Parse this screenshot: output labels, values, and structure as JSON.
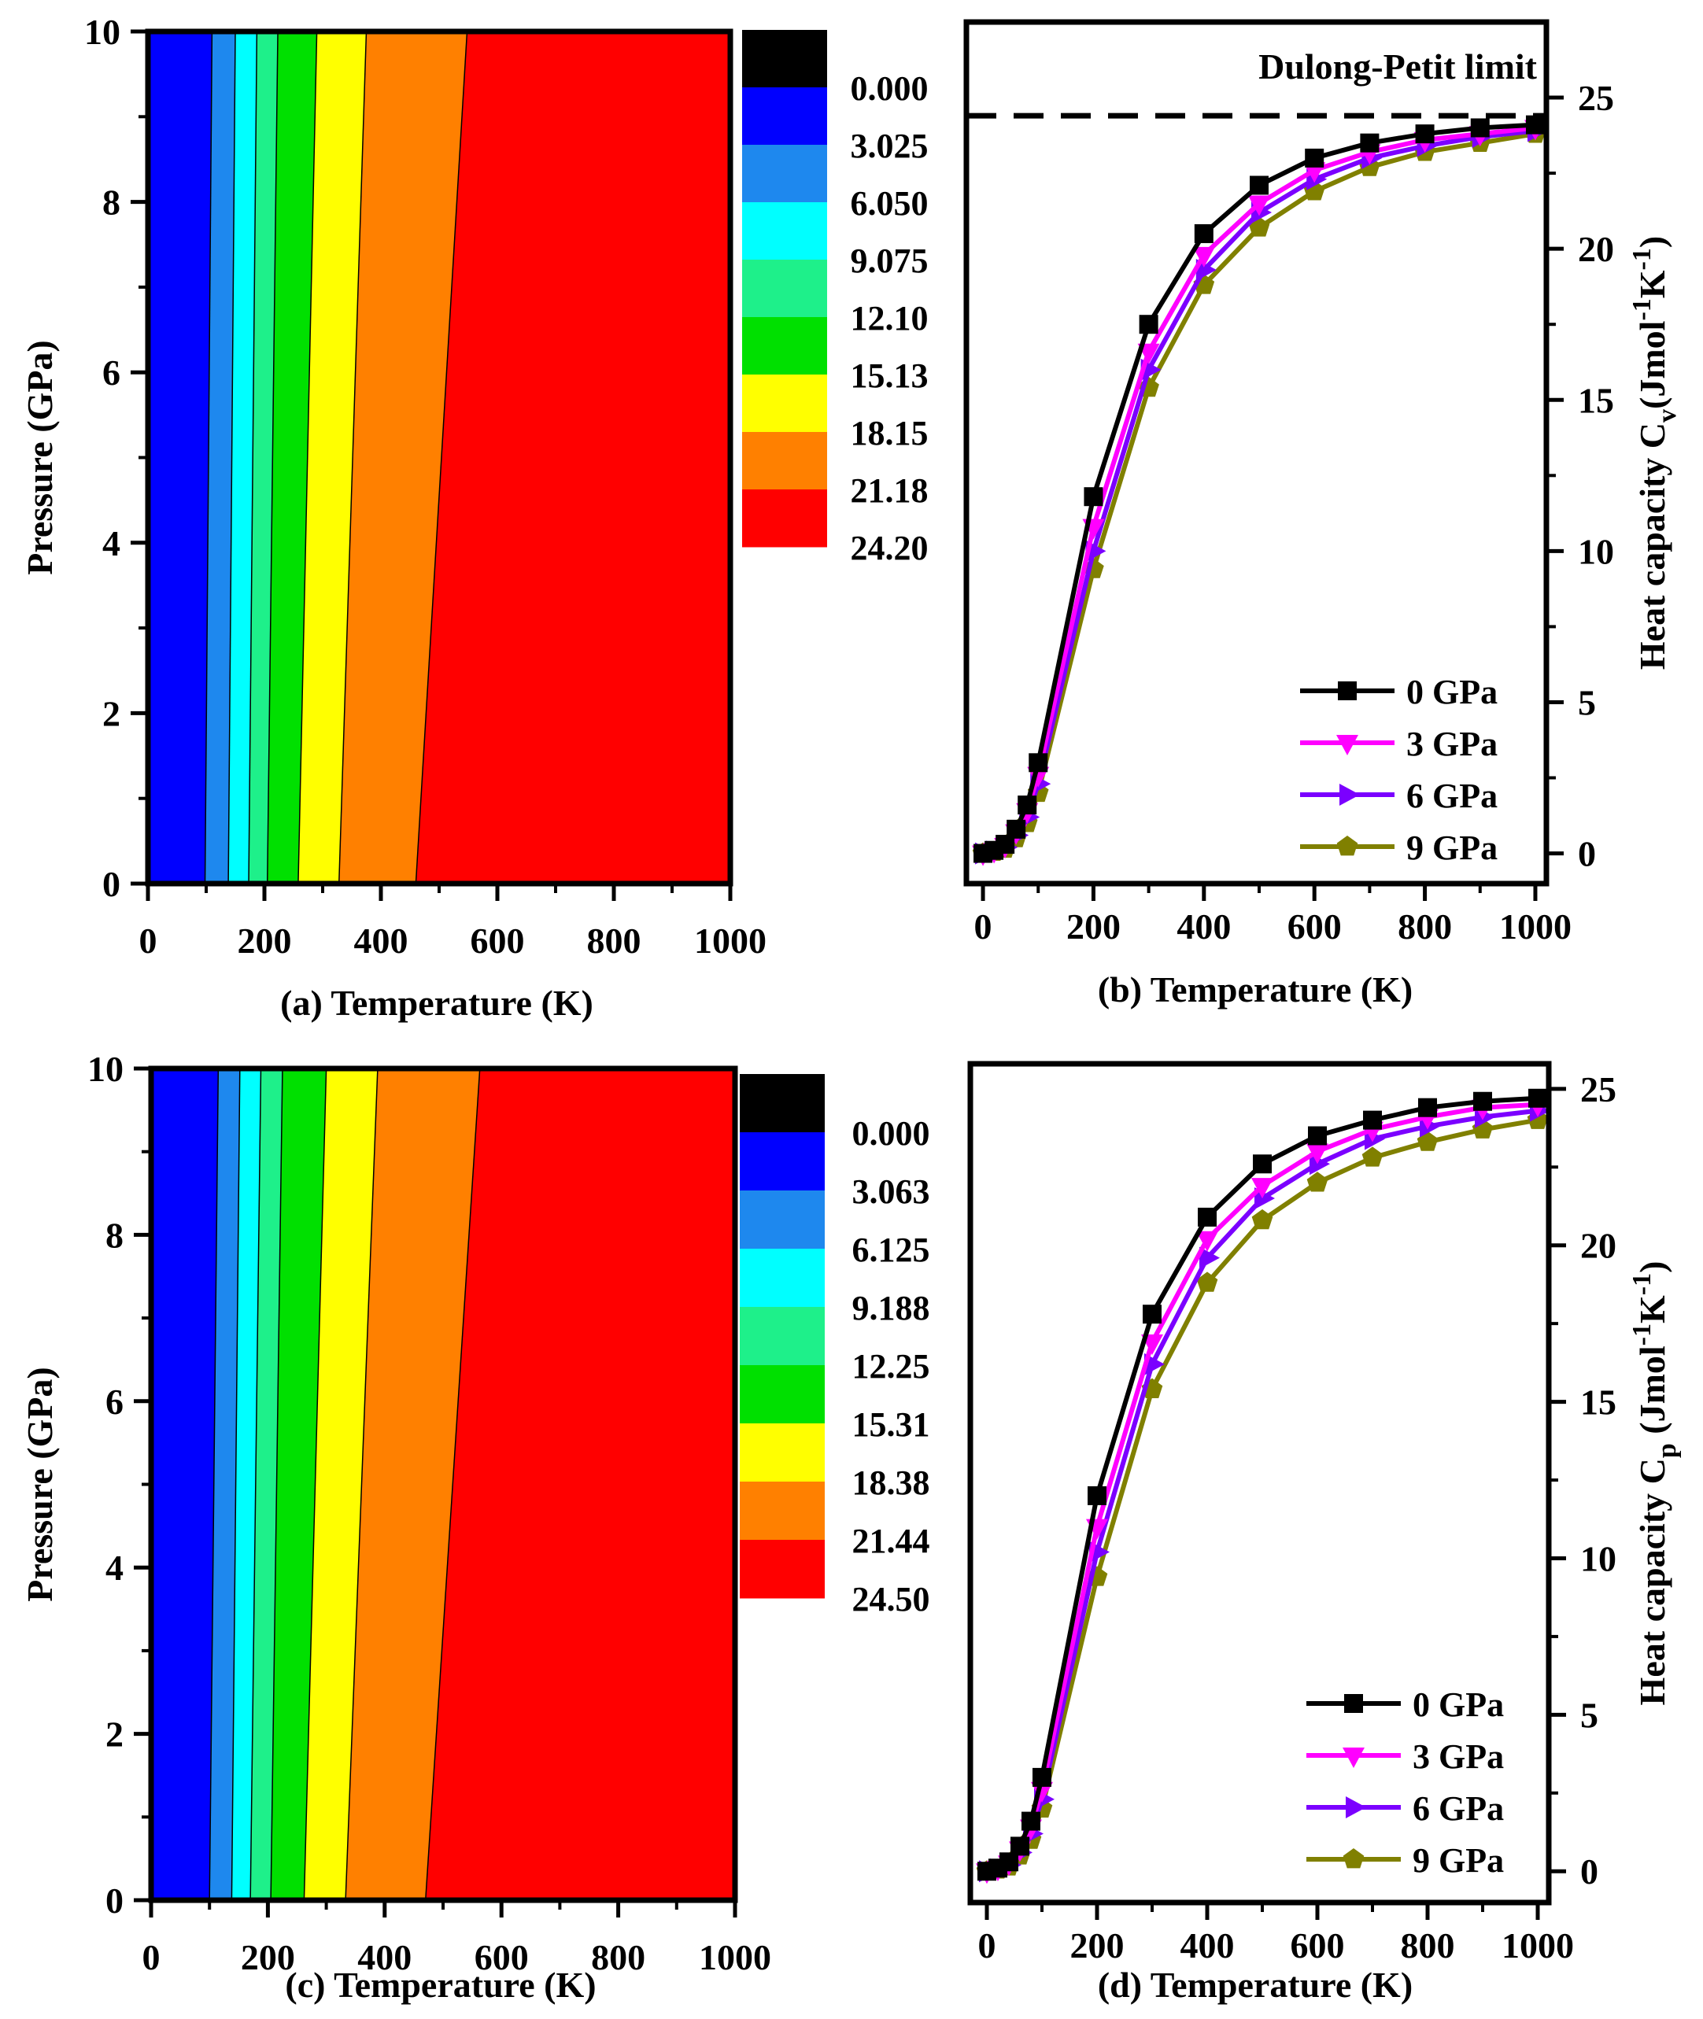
{
  "chart_data": [
    {
      "id": "a",
      "type": "heatmap",
      "caption": "(a) Temperature (K)",
      "ylabel": "Pressure (GPa)",
      "xlim": [
        0,
        1000
      ],
      "ylim": [
        0,
        10
      ],
      "xticks": [
        "0",
        "200",
        "400",
        "600",
        "800",
        "1000"
      ],
      "yticks": [
        "0",
        "2",
        "4",
        "6",
        "8",
        "10"
      ],
      "colorbar": {
        "labels": [
          "0.000",
          "3.025",
          "6.050",
          "9.075",
          "12.10",
          "15.13",
          "18.15",
          "21.18",
          "24.20"
        ],
        "colors": [
          "#000000",
          "#0000ff",
          "#1e88ee",
          "#00ffff",
          "#1ef08a",
          "#00e000",
          "#ffff00",
          "#ff8000",
          "#ff0000"
        ]
      },
      "contour_levels_T_at_P0": [
        98,
        138,
        173,
        205,
        258,
        328,
        460
      ],
      "contour_levels_T_at_P10": [
        110,
        150,
        187,
        223,
        290,
        375,
        548
      ]
    },
    {
      "id": "b",
      "type": "line",
      "caption": "(b) Temperature (K)",
      "ylabel": "Heat capacity Cv (Jmol-1K-1)",
      "ylabel_main": "Heat capacity C",
      "ylabel_sub": "v",
      "ylabel_unit": "(Jmol",
      "ylabel_sup1": "-1",
      "ylabel_k": "K",
      "ylabel_sup2": "-1",
      "ylabel_end": ")",
      "annotation": "Dulong-Petit limit",
      "dulong_petit_value": 24.4,
      "xlim": [
        -30,
        1020
      ],
      "ylim": [
        -1,
        27.5
      ],
      "xticks": [
        "0",
        "200",
        "400",
        "600",
        "800",
        "1000"
      ],
      "yticks": [
        "0",
        "5",
        "10",
        "15",
        "20",
        "25"
      ],
      "x": [
        0,
        20,
        40,
        60,
        80,
        100,
        200,
        300,
        400,
        500,
        600,
        700,
        800,
        900,
        1000
      ],
      "series": [
        {
          "name": "0 GPa",
          "marker": "square",
          "color": "#000000",
          "values": [
            0,
            0.1,
            0.3,
            0.8,
            1.6,
            3.0,
            11.8,
            17.5,
            20.5,
            22.1,
            23.0,
            23.5,
            23.8,
            24.0,
            24.1
          ]
        },
        {
          "name": "3 GPa",
          "marker": "triangle-down",
          "color": "#ff00ff",
          "values": [
            0,
            0.08,
            0.25,
            0.7,
            1.4,
            2.6,
            10.8,
            16.6,
            19.8,
            21.5,
            22.6,
            23.2,
            23.6,
            23.8,
            24.0
          ]
        },
        {
          "name": "6 GPa",
          "marker": "triangle-right",
          "color": "#7b00ff",
          "values": [
            0,
            0.06,
            0.2,
            0.6,
            1.2,
            2.3,
            10.0,
            16.0,
            19.3,
            21.2,
            22.3,
            23.0,
            23.4,
            23.7,
            23.9
          ]
        },
        {
          "name": "9 GPa",
          "marker": "pentagon",
          "color": "#808000",
          "values": [
            0,
            0.05,
            0.15,
            0.5,
            1.0,
            2.0,
            9.4,
            15.4,
            18.8,
            20.7,
            21.9,
            22.7,
            23.2,
            23.5,
            23.8
          ]
        }
      ]
    },
    {
      "id": "c",
      "type": "heatmap",
      "caption": "(c) Temperature (K)",
      "ylabel": "Pressure (GPa)",
      "xlim": [
        0,
        1000
      ],
      "ylim": [
        0,
        10
      ],
      "xticks": [
        "0",
        "200",
        "400",
        "600",
        "800",
        "1000"
      ],
      "yticks": [
        "0",
        "2",
        "4",
        "6",
        "8",
        "10"
      ],
      "colorbar": {
        "labels": [
          "0.000",
          "3.063",
          "6.125",
          "9.188",
          "12.25",
          "15.31",
          "18.38",
          "21.44",
          "24.50"
        ],
        "colors": [
          "#000000",
          "#0000ff",
          "#1e88ee",
          "#00ffff",
          "#1ef08a",
          "#00e000",
          "#ffff00",
          "#ff8000",
          "#ff0000"
        ]
      },
      "contour_levels_T_at_P0": [
        100,
        138,
        170,
        205,
        262,
        333,
        470
      ],
      "contour_levels_T_at_P10": [
        115,
        152,
        188,
        225,
        300,
        388,
        563
      ]
    },
    {
      "id": "d",
      "type": "line",
      "caption": "(d) Temperature (K)",
      "ylabel": "Heat capacity Cp (Jmol-1K-1)",
      "ylabel_main": "Heat capacity C",
      "ylabel_sub": "p",
      "ylabel_unit": " (Jmol",
      "ylabel_sup1": "-1",
      "ylabel_k": "K",
      "ylabel_sup2": "-1",
      "ylabel_end": ")",
      "xlim": [
        -30,
        1020
      ],
      "ylim": [
        -1,
        25.8
      ],
      "xticks": [
        "0",
        "200",
        "400",
        "600",
        "800",
        "1000"
      ],
      "yticks": [
        "0",
        "5",
        "10",
        "15",
        "20",
        "25"
      ],
      "x": [
        0,
        20,
        40,
        60,
        80,
        100,
        200,
        300,
        400,
        500,
        600,
        700,
        800,
        900,
        1000
      ],
      "series": [
        {
          "name": "0 GPa",
          "marker": "square",
          "color": "#000000",
          "values": [
            0,
            0.1,
            0.3,
            0.8,
            1.6,
            3.0,
            12.0,
            17.8,
            20.9,
            22.6,
            23.5,
            24.0,
            24.4,
            24.6,
            24.7
          ]
        },
        {
          "name": "3 GPa",
          "marker": "triangle-down",
          "color": "#ff00ff",
          "values": [
            0,
            0.08,
            0.25,
            0.7,
            1.4,
            2.6,
            11.0,
            16.9,
            20.2,
            21.9,
            23.0,
            23.7,
            24.1,
            24.4,
            24.5
          ]
        },
        {
          "name": "6 GPa",
          "marker": "triangle-right",
          "color": "#7b00ff",
          "values": [
            0,
            0.06,
            0.2,
            0.6,
            1.2,
            2.3,
            10.2,
            16.2,
            19.6,
            21.5,
            22.6,
            23.4,
            23.8,
            24.1,
            24.3
          ]
        },
        {
          "name": "9 GPa",
          "marker": "pentagon",
          "color": "#808000",
          "values": [
            0,
            0.05,
            0.15,
            0.5,
            1.0,
            2.0,
            9.4,
            15.4,
            18.8,
            20.8,
            22.0,
            22.8,
            23.3,
            23.7,
            24.0
          ]
        }
      ]
    }
  ]
}
